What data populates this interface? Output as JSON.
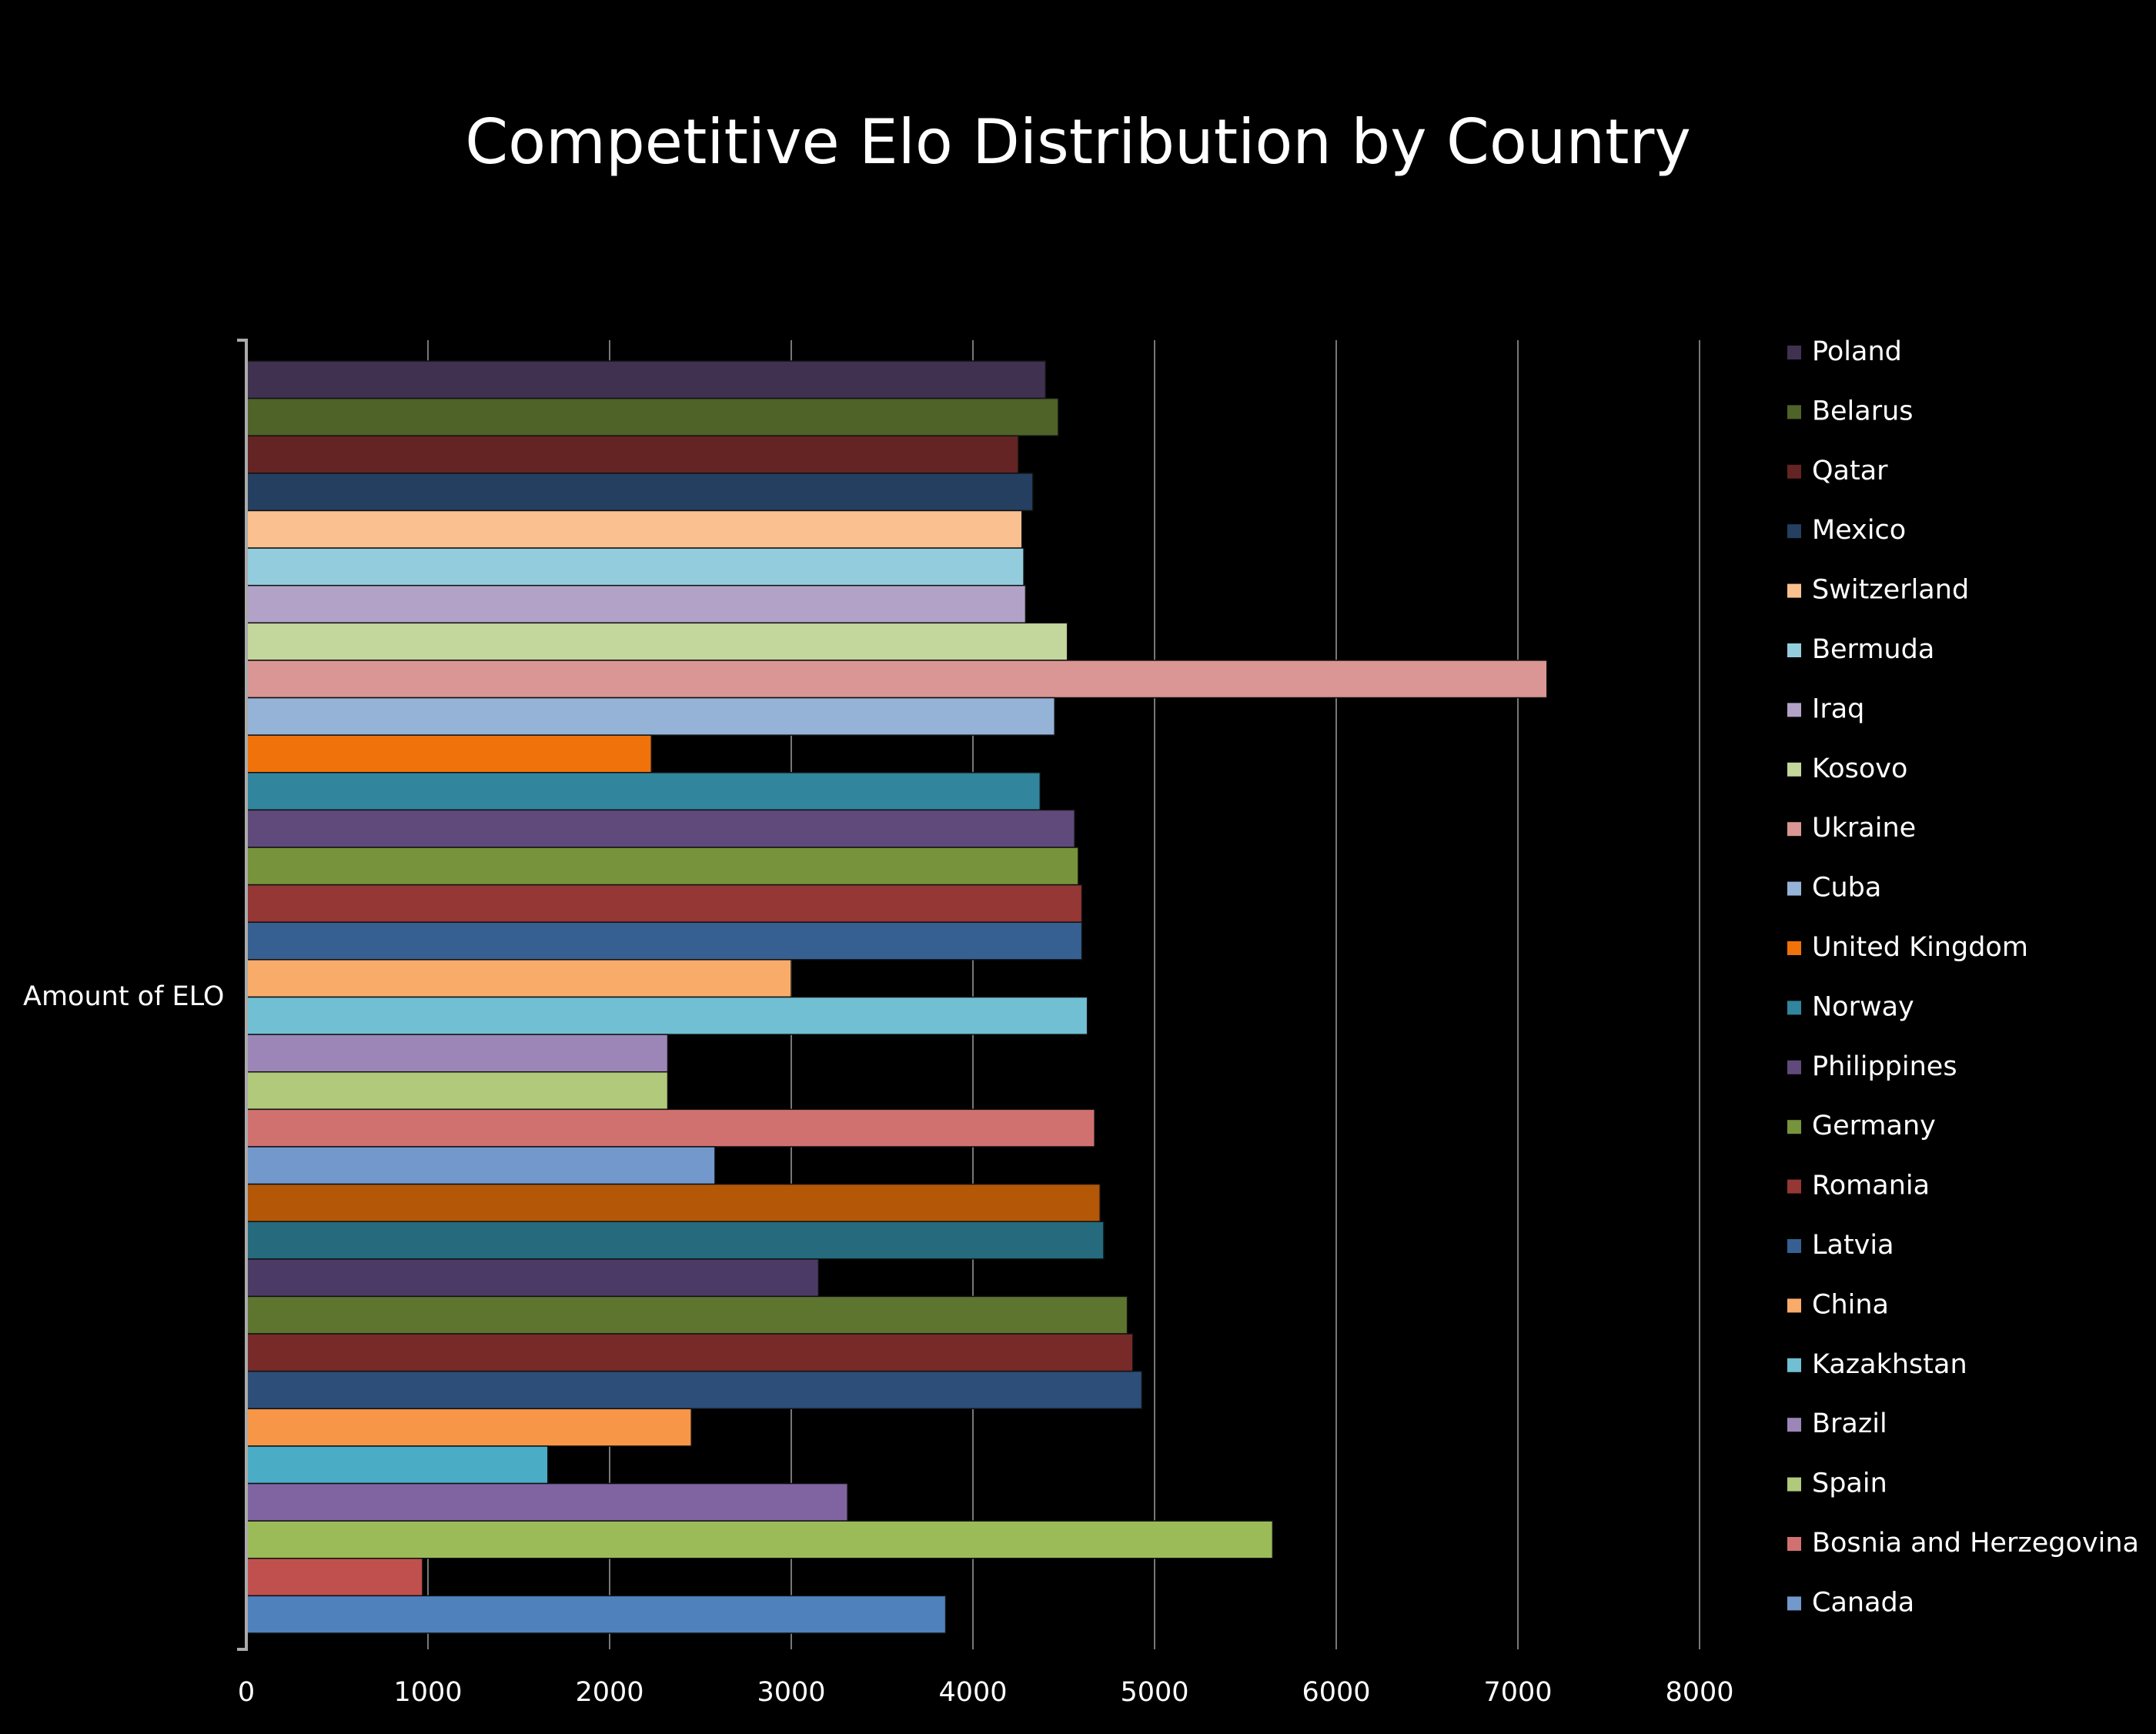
{
  "chart_data": {
    "type": "bar",
    "orientation": "horizontal",
    "title": "Competitive Elo Distribution by Country",
    "ylabel": "Amount of ELO",
    "xlabel": "",
    "xlim": [
      0,
      8000
    ],
    "x_ticks": [
      "0",
      "1000",
      "2000",
      "3000",
      "4000",
      "5000",
      "6000",
      "7000",
      "8000"
    ],
    "grid": "vertical",
    "legend_position": "right",
    "series": [
      {
        "name": "Poland",
        "value": 4400,
        "color": "#403151"
      },
      {
        "name": "Belarus",
        "value": 4470,
        "color": "#4f6228"
      },
      {
        "name": "Qatar",
        "value": 4250,
        "color": "#632423"
      },
      {
        "name": "Mexico",
        "value": 4330,
        "color": "#243f60"
      },
      {
        "name": "Switzerland",
        "value": 4270,
        "color": "#fac090"
      },
      {
        "name": "Bermuda",
        "value": 4280,
        "color": "#93cddd"
      },
      {
        "name": "Iraq",
        "value": 4290,
        "color": "#b3a2c7"
      },
      {
        "name": "Kosovo",
        "value": 4520,
        "color": "#c3d69b"
      },
      {
        "name": "Ukraine",
        "value": 7160,
        "color": "#d99694"
      },
      {
        "name": "Cuba",
        "value": 4450,
        "color": "#95b3d7"
      },
      {
        "name": "United Kingdom",
        "value": 2230,
        "color": "#f0720a"
      },
      {
        "name": "Norway",
        "value": 4370,
        "color": "#31859c"
      },
      {
        "name": "Philippines",
        "value": 4560,
        "color": "#604a7b"
      },
      {
        "name": "Germany",
        "value": 4580,
        "color": "#77933c"
      },
      {
        "name": "Romania",
        "value": 4600,
        "color": "#953735"
      },
      {
        "name": "Latvia",
        "value": 4600,
        "color": "#376092"
      },
      {
        "name": "China",
        "value": 3000,
        "color": "#f9ab6a"
      },
      {
        "name": "Kazakhstan",
        "value": 4630,
        "color": "#71bfd2"
      },
      {
        "name": "Brazil",
        "value": 2320,
        "color": "#9c86b8"
      },
      {
        "name": "Spain",
        "value": 2320,
        "color": "#b0c97a"
      },
      {
        "name": "Bosnia and Herzegovina",
        "value": 4670,
        "color": "#d07170"
      },
      {
        "name": "Canada",
        "value": 2580,
        "color": "#7298cc"
      },
      {
        "name": "",
        "value": 4700,
        "color": "#b45707"
      },
      {
        "name": "",
        "value": 4720,
        "color": "#256b7d"
      },
      {
        "name": "",
        "value": 3150,
        "color": "#4c3a66"
      },
      {
        "name": "",
        "value": 4850,
        "color": "#5e7530"
      },
      {
        "name": "",
        "value": 4880,
        "color": "#782a29"
      },
      {
        "name": "",
        "value": 4930,
        "color": "#2c4e79"
      },
      {
        "name": "",
        "value": 2450,
        "color": "#f79646"
      },
      {
        "name": "",
        "value": 1660,
        "color": "#4bacc6"
      },
      {
        "name": "",
        "value": 3310,
        "color": "#8064a2"
      },
      {
        "name": "",
        "value": 5650,
        "color": "#9bbb59"
      },
      {
        "name": "",
        "value": 970,
        "color": "#c0504d"
      },
      {
        "name": "",
        "value": 3850,
        "color": "#4f81bd"
      }
    ]
  }
}
